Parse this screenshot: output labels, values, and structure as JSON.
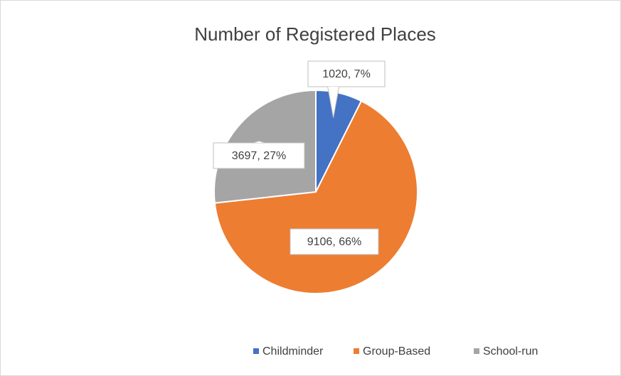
{
  "chart_data": {
    "type": "pie",
    "title": "Number of Registered Places",
    "categories": [
      "Childminder",
      "Group-Based",
      "School-run"
    ],
    "values": [
      1020,
      9106,
      3697
    ],
    "value_labels": [
      "1020, 7%",
      "9106, 66%",
      "3697, 27%"
    ],
    "colors": [
      "#4472c4",
      "#ed7d31",
      "#a5a5a5"
    ],
    "legend": "bottom"
  }
}
